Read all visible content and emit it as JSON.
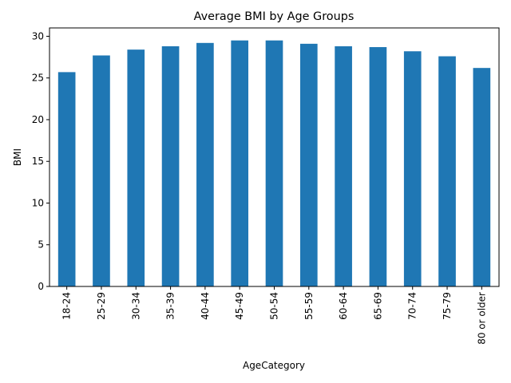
{
  "chart_data": {
    "type": "bar",
    "title": "Average BMI by Age Groups",
    "xlabel": "AgeCategory",
    "ylabel": "BMI",
    "categories": [
      "18-24",
      "25-29",
      "30-34",
      "35-39",
      "40-44",
      "45-49",
      "50-54",
      "55-59",
      "60-64",
      "65-69",
      "70-74",
      "75-79",
      "80 or older"
    ],
    "values": [
      25.7,
      27.7,
      28.4,
      28.8,
      29.2,
      29.5,
      29.5,
      29.1,
      28.8,
      28.7,
      28.2,
      27.6,
      26.2
    ],
    "ylim": [
      0,
      31.0
    ],
    "yticks": [
      0,
      5,
      10,
      15,
      20,
      25,
      30
    ],
    "bar_color": "#1f77b4",
    "grid": false,
    "legend": "none"
  }
}
